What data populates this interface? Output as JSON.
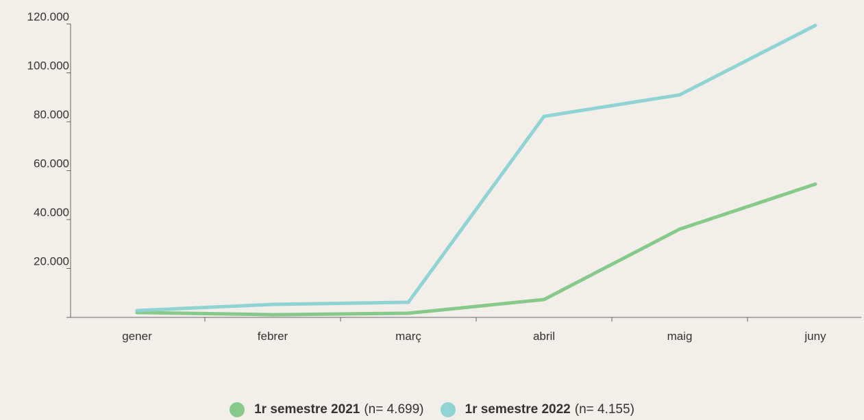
{
  "chart_data": {
    "type": "line",
    "categories": [
      "gener",
      "febrer",
      "març",
      "abril",
      "maig",
      "juny"
    ],
    "series": [
      {
        "name": "1r semestre 2021",
        "n_label": "(n= 4.699)",
        "color": "#86c98a",
        "values": [
          2000,
          1100,
          1700,
          7300,
          36100,
          54500
        ]
      },
      {
        "name": "1r semestre 2022",
        "n_label": "(n= 4.155)",
        "color": "#8fd3d3",
        "values": [
          2800,
          5300,
          6200,
          82200,
          91000,
          119400
        ]
      }
    ],
    "ylim": [
      0,
      120000
    ],
    "yticks": [
      {
        "value": 20000,
        "label": "20.000"
      },
      {
        "value": 40000,
        "label": "40.000"
      },
      {
        "value": 60000,
        "label": "60.000"
      },
      {
        "value": 80000,
        "label": "80.000"
      },
      {
        "value": 100000,
        "label": "100.000"
      },
      {
        "value": 120000,
        "label": "120.000"
      }
    ],
    "legend": "bottom"
  }
}
